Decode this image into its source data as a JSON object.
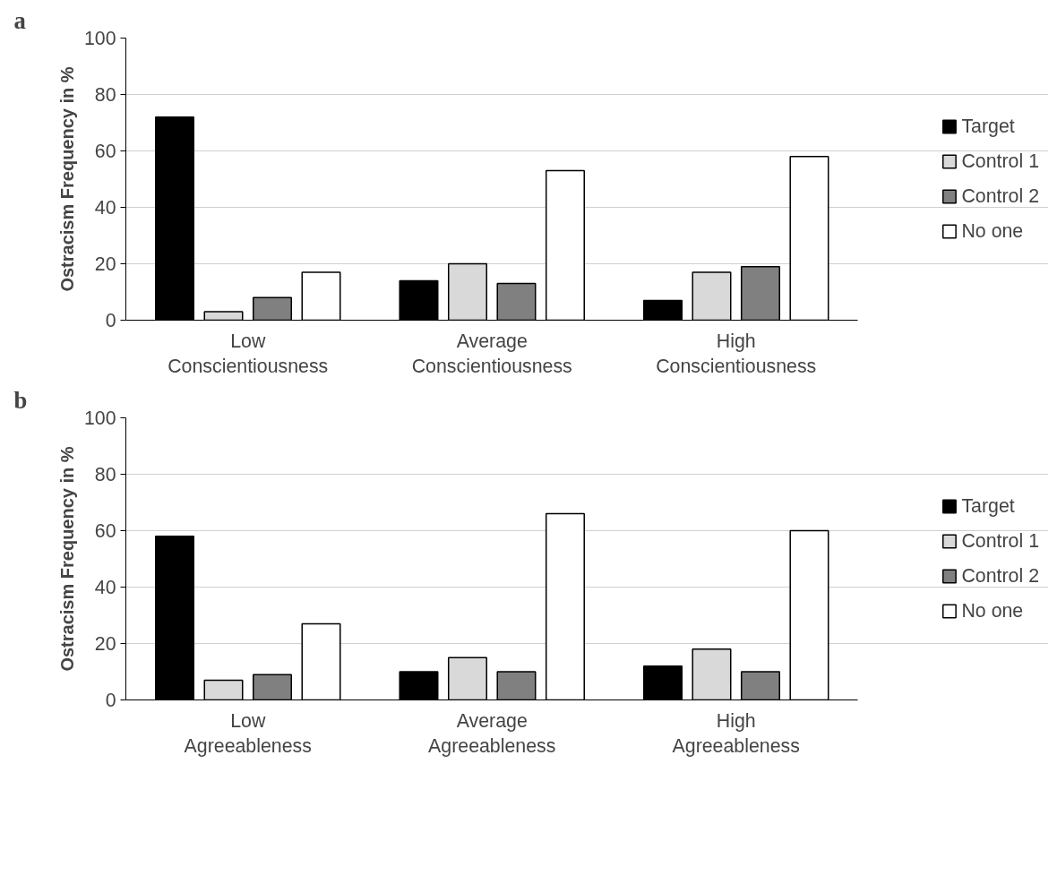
{
  "chart_data": [
    {
      "type": "bar",
      "title": "a",
      "ylabel": "Ostracism Frequency in %",
      "categories": [
        "Low Conscientiousness",
        "Average Conscientiousness",
        "High Conscientiousness"
      ],
      "ylim": [
        0,
        100
      ],
      "yticks": [
        0,
        20,
        40,
        60,
        80,
        100
      ],
      "grid": "y",
      "legend": "right",
      "series": [
        {
          "name": "Target",
          "color": "#000000",
          "values": [
            72,
            14,
            7
          ]
        },
        {
          "name": "Control 1",
          "color": "#d9d9d9",
          "values": [
            3,
            20,
            17
          ]
        },
        {
          "name": "Control 2",
          "color": "#808080",
          "values": [
            8,
            13,
            19
          ]
        },
        {
          "name": "No one",
          "color": "#ffffff",
          "values": [
            17,
            53,
            58
          ]
        }
      ]
    },
    {
      "type": "bar",
      "title": "b",
      "ylabel": "Ostracism Frequency in %",
      "categories": [
        "Low Agreeableness",
        "Average Agreeableness",
        "High Agreeableness"
      ],
      "ylim": [
        0,
        100
      ],
      "yticks": [
        0,
        20,
        40,
        60,
        80,
        100
      ],
      "grid": "y",
      "legend": "right",
      "series": [
        {
          "name": "Target",
          "color": "#000000",
          "values": [
            58,
            10,
            12
          ]
        },
        {
          "name": "Control 1",
          "color": "#d9d9d9",
          "values": [
            7,
            15,
            18
          ]
        },
        {
          "name": "Control 2",
          "color": "#808080",
          "values": [
            9,
            10,
            10
          ]
        },
        {
          "name": "No one",
          "color": "#ffffff",
          "values": [
            27,
            66,
            60
          ]
        }
      ]
    }
  ]
}
